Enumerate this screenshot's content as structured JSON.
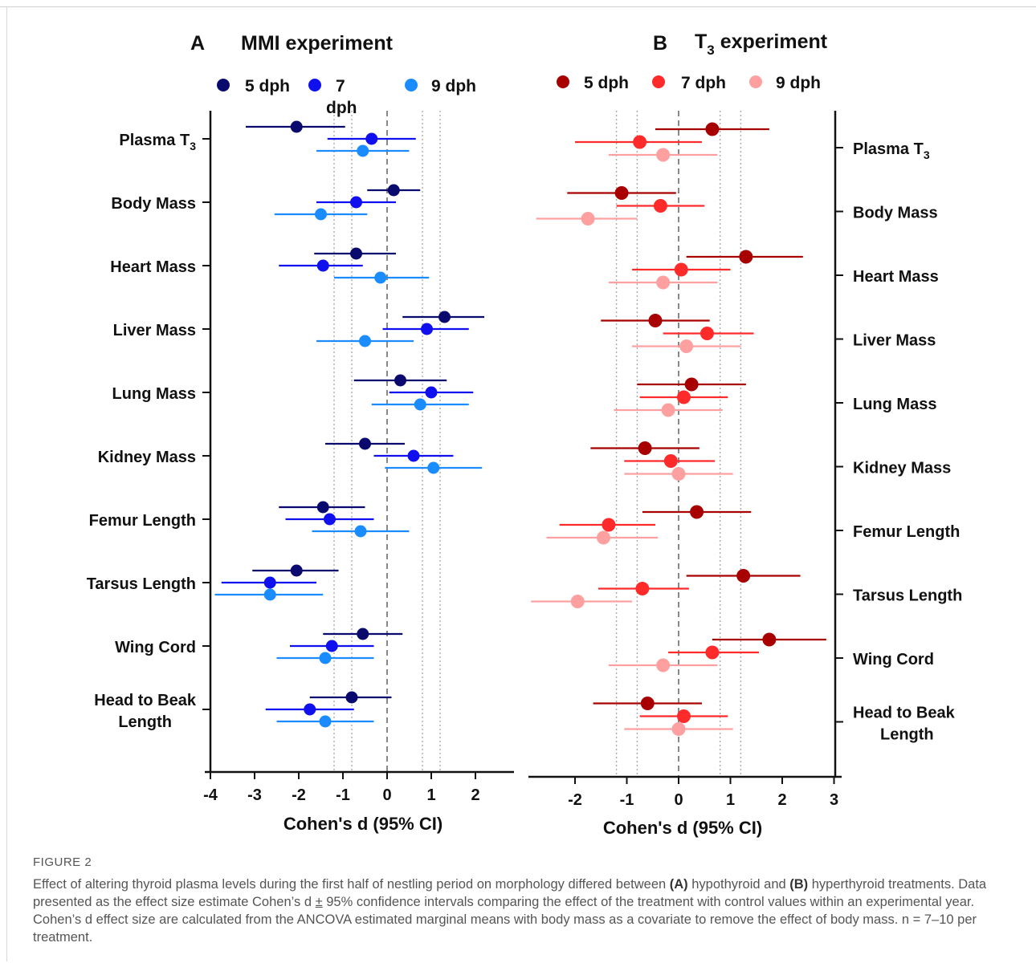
{
  "panels": [
    {
      "letter": "A",
      "title": "MMI experiment",
      "xlabel": "Cohen's d (95%  CI)",
      "legend": [
        {
          "label": "5 dph",
          "color": "#0a0a6e"
        },
        {
          "label": "7",
          "label2": "dph",
          "color": "#1010ee"
        },
        {
          "label": "9 dph",
          "color": "#1a8cff"
        }
      ]
    },
    {
      "letter": "B",
      "title_pre": "T",
      "title_sub": "3",
      "title_post": " experiment",
      "xlabel": "Cohen's d (95%  CI)",
      "legend": [
        {
          "label": "5 dph",
          "color": "#a80000"
        },
        {
          "label": "7 dph",
          "color": "#ff2a2a"
        },
        {
          "label": "9 dph",
          "color": "#ffa0a0"
        }
      ]
    }
  ],
  "chart_data": [
    {
      "type": "scatter",
      "title": "MMI experiment",
      "xlabel": "Cohen's d (95%  CI)",
      "xlim": [
        -4,
        3
      ],
      "xticks": [
        -4,
        -3,
        -2,
        -1,
        0,
        1,
        2
      ],
      "reference_lines": [
        -1.2,
        -0.8,
        0,
        0.8,
        1.2
      ],
      "categories": [
        "Plasma T3",
        "Body Mass",
        "Heart Mass",
        "Liver Mass",
        "Lung Mass",
        "Kidney Mass",
        "Femur Length",
        "Tarsus Length",
        "Wing Cord",
        "Head to Beak Length"
      ],
      "series": [
        {
          "name": "5 dph",
          "color": "#0a0a6e",
          "values": [
            -2.05,
            0.15,
            -0.7,
            1.3,
            0.3,
            -0.5,
            -1.45,
            -2.05,
            -0.55,
            -0.8
          ],
          "ci_low": [
            -3.2,
            -0.45,
            -1.65,
            0.35,
            -0.75,
            -1.4,
            -2.45,
            -3.05,
            -1.45,
            -1.75
          ],
          "ci_high": [
            -0.95,
            0.75,
            0.2,
            2.2,
            1.35,
            0.4,
            -0.5,
            -1.1,
            0.35,
            0.1
          ]
        },
        {
          "name": "7 dph",
          "color": "#1010ee",
          "values": [
            -0.35,
            -0.7,
            -1.45,
            0.9,
            1.0,
            0.6,
            -1.3,
            -2.65,
            -1.25,
            -1.75
          ],
          "ci_low": [
            -1.35,
            -1.6,
            -2.45,
            -0.1,
            0.05,
            -0.3,
            -2.3,
            -3.75,
            -2.2,
            -2.75
          ],
          "ci_high": [
            0.65,
            0.2,
            -0.55,
            1.85,
            1.95,
            1.5,
            -0.3,
            -1.6,
            -0.3,
            -0.75
          ]
        },
        {
          "name": "9 dph",
          "color": "#1a8cff",
          "values": [
            -0.55,
            -1.5,
            -0.15,
            -0.5,
            0.75,
            1.05,
            -0.6,
            -2.65,
            -1.4,
            -1.4
          ],
          "ci_low": [
            -1.6,
            -2.55,
            -1.2,
            -1.6,
            -0.35,
            -0.05,
            -1.7,
            -3.9,
            -2.5,
            -2.5
          ],
          "ci_high": [
            0.5,
            -0.45,
            0.95,
            0.6,
            1.85,
            2.15,
            0.5,
            -1.45,
            -0.3,
            -0.3
          ]
        }
      ]
    },
    {
      "type": "scatter",
      "title": "T3 experiment",
      "xlabel": "Cohen's d (95%  CI)",
      "xlim": [
        -2.85,
        3
      ],
      "xticks": [
        -2,
        -1,
        0,
        1,
        2,
        3
      ],
      "reference_lines": [
        -1.2,
        -0.8,
        0,
        0.8,
        1.2
      ],
      "categories": [
        "Plasma T3",
        "Body Mass",
        "Heart Mass",
        "Liver Mass",
        "Lung Mass",
        "Kidney Mass",
        "Femur Length",
        "Tarsus Length",
        "Wing Cord",
        "Head to Beak Length"
      ],
      "series": [
        {
          "name": "5 dph",
          "color": "#a80000",
          "values": [
            0.65,
            -1.1,
            1.3,
            -0.45,
            0.25,
            -0.65,
            0.35,
            1.25,
            1.75,
            -0.6
          ],
          "ci_low": [
            -0.45,
            -2.15,
            0.15,
            -1.5,
            -0.8,
            -1.7,
            -0.7,
            0.15,
            0.65,
            -1.65
          ],
          "ci_high": [
            1.75,
            -0.05,
            2.4,
            0.6,
            1.3,
            0.4,
            1.4,
            2.35,
            2.85,
            0.45
          ]
        },
        {
          "name": "7 dph",
          "color": "#ff2a2a",
          "values": [
            -0.75,
            -0.35,
            0.05,
            0.55,
            0.1,
            -0.15,
            -1.35,
            -0.7,
            0.65,
            0.1
          ],
          "ci_low": [
            -2.0,
            -1.2,
            -0.9,
            -0.3,
            -0.75,
            -1.05,
            -2.3,
            -1.55,
            -0.2,
            -0.75
          ],
          "ci_high": [
            0.45,
            0.5,
            1.0,
            1.45,
            0.95,
            0.7,
            -0.45,
            0.2,
            1.55,
            0.95
          ]
        },
        {
          "name": "9 dph",
          "color": "#ffa0a0",
          "values": [
            -0.3,
            -1.75,
            -0.3,
            0.15,
            -0.2,
            0.0,
            -1.45,
            -1.95,
            -0.3,
            0.0
          ],
          "ci_low": [
            -1.35,
            -2.75,
            -1.35,
            -0.9,
            -1.25,
            -1.05,
            -2.55,
            -2.85,
            -1.35,
            -1.05
          ],
          "ci_high": [
            0.75,
            -0.8,
            0.75,
            1.2,
            0.85,
            1.05,
            -0.4,
            -0.9,
            0.75,
            1.05
          ]
        }
      ]
    }
  ],
  "caption": {
    "heading": "FIGURE 2",
    "t1": "Effect of altering thyroid plasma levels during the first half of nestling period on morphology differed between ",
    "b1": "(A)",
    "t2": " hypothyroid and ",
    "b2": "(B)",
    "t3": " hyperthyroid treatments. Data presented as the effect size estimate Cohen’s d ",
    "pm": "±",
    "t4": " 95% confidence intervals comparing the effect of the treatment with control values within an experimental year. Cohen’s d effect size are calculated from the ANCOVA estimated marginal means with body mass as a covariate to remove the effect of body mass. n = 7–10 per treatment."
  }
}
